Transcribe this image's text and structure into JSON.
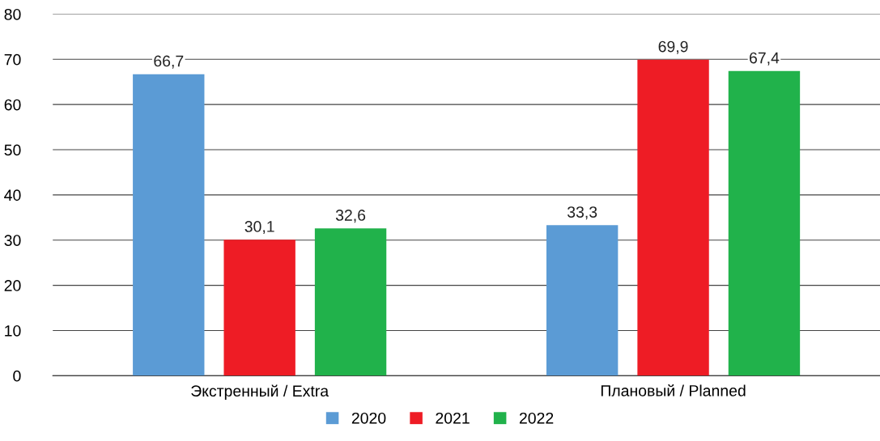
{
  "chart_data": {
    "type": "bar",
    "categories": [
      "Экстренный / Extra",
      "Плановый / Planned"
    ],
    "series": [
      {
        "name": "2020",
        "color": "#5b9bd5",
        "values": [
          66.7,
          33.3
        ],
        "value_labels": [
          "66,7",
          "33,3"
        ]
      },
      {
        "name": "2021",
        "color": "#ee1c25",
        "values": [
          30.1,
          69.9
        ],
        "value_labels": [
          "30,1",
          "69,9"
        ]
      },
      {
        "name": "2022",
        "color": "#21b24b",
        "values": [
          32.6,
          67.4
        ],
        "value_labels": [
          "32,6",
          "67,4"
        ]
      }
    ],
    "ylim": [
      0,
      80
    ],
    "yticks": [
      0,
      10,
      20,
      30,
      40,
      50,
      60,
      70,
      80
    ],
    "grid": "y",
    "legend": "bottom"
  }
}
